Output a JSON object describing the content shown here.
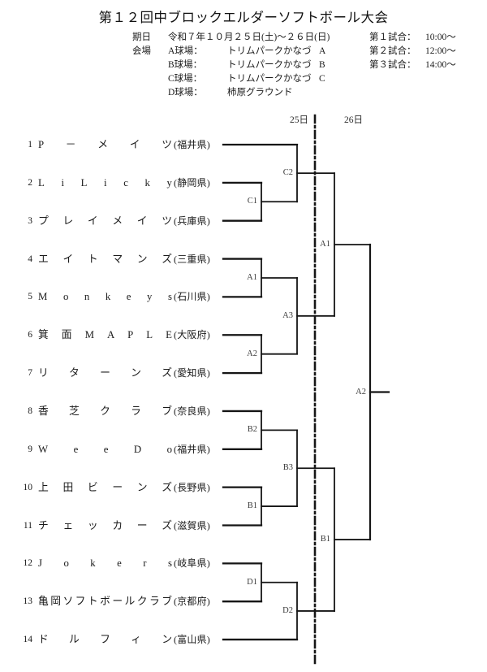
{
  "title": "第１２回中ブロックエルダーソフトボール大会",
  "info": {
    "date_label": "期日",
    "date_value": "令和７年１０月２５日(土)～２６日(日)",
    "venue_label": "会場",
    "venues": [
      {
        "court": "A球場：",
        "name": "トリムパークかなづ",
        "letter": "A"
      },
      {
        "court": "B球場：",
        "name": "トリムパークかなづ",
        "letter": "B"
      },
      {
        "court": "C球場：",
        "name": "トリムパークかなづ",
        "letter": "C"
      },
      {
        "court": "D球場：",
        "name": "柿原グラウンド",
        "letter": ""
      }
    ],
    "schedule": [
      {
        "label": "第１試合：",
        "time": "10:00～"
      },
      {
        "label": "第２試合：",
        "time": "12:00～"
      },
      {
        "label": "第３試合：",
        "time": "14:00～"
      }
    ]
  },
  "bracket": {
    "day_left": "25日",
    "day_right": "26日",
    "teams": [
      {
        "num": "1",
        "name": "P－メイツ",
        "prefecture": "(福井県)"
      },
      {
        "num": "2",
        "name": "LiLicky",
        "prefecture": "(静岡県)"
      },
      {
        "num": "3",
        "name": "プレイメイツ",
        "prefecture": "(兵庫県)"
      },
      {
        "num": "4",
        "name": "エイトマンズ",
        "prefecture": "(三重県)"
      },
      {
        "num": "5",
        "name": "Monkeys",
        "prefecture": "(石川県)"
      },
      {
        "num": "6",
        "name": "箕面MAPLE",
        "prefecture": "(大阪府)"
      },
      {
        "num": "7",
        "name": "リターンズ",
        "prefecture": "(愛知県)"
      },
      {
        "num": "8",
        "name": "香芝クラブ",
        "prefecture": "(奈良県)"
      },
      {
        "num": "9",
        "name": "WeeDo",
        "prefecture": "(福井県)"
      },
      {
        "num": "10",
        "name": "上田ビーンズ",
        "prefecture": "(長野県)"
      },
      {
        "num": "11",
        "name": "チェッカーズ",
        "prefecture": "(滋賀県)"
      },
      {
        "num": "12",
        "name": "Jokers",
        "prefecture": "(岐阜県)"
      },
      {
        "num": "13",
        "name": "亀岡ソフトボールクラブ",
        "prefecture": "(京都府)"
      },
      {
        "num": "14",
        "name": "ドルフィン",
        "prefecture": "(富山県)"
      }
    ],
    "round1": [
      {
        "label": "C1",
        "teams": [
          2,
          3
        ]
      },
      {
        "label": "A1",
        "teams": [
          4,
          5
        ]
      },
      {
        "label": "A2",
        "teams": [
          6,
          7
        ]
      },
      {
        "label": "B2",
        "teams": [
          8,
          9
        ]
      },
      {
        "label": "B1",
        "teams": [
          10,
          11
        ]
      },
      {
        "label": "D1",
        "teams": [
          12,
          13
        ]
      }
    ],
    "round2": [
      {
        "label": "C2",
        "top": "team1",
        "bottom": "C1"
      },
      {
        "label": "A3",
        "top": "A1",
        "bottom": "A2"
      },
      {
        "label": "B3",
        "top": "B2",
        "bottom": "B1"
      },
      {
        "label": "D2",
        "top": "D1",
        "bottom": "team14"
      }
    ],
    "round3": [
      {
        "label": "A1",
        "top": "C2",
        "bottom": "A3"
      },
      {
        "label": "B1",
        "top": "B3",
        "bottom": "D2"
      }
    ],
    "final": {
      "label": "A2"
    }
  }
}
